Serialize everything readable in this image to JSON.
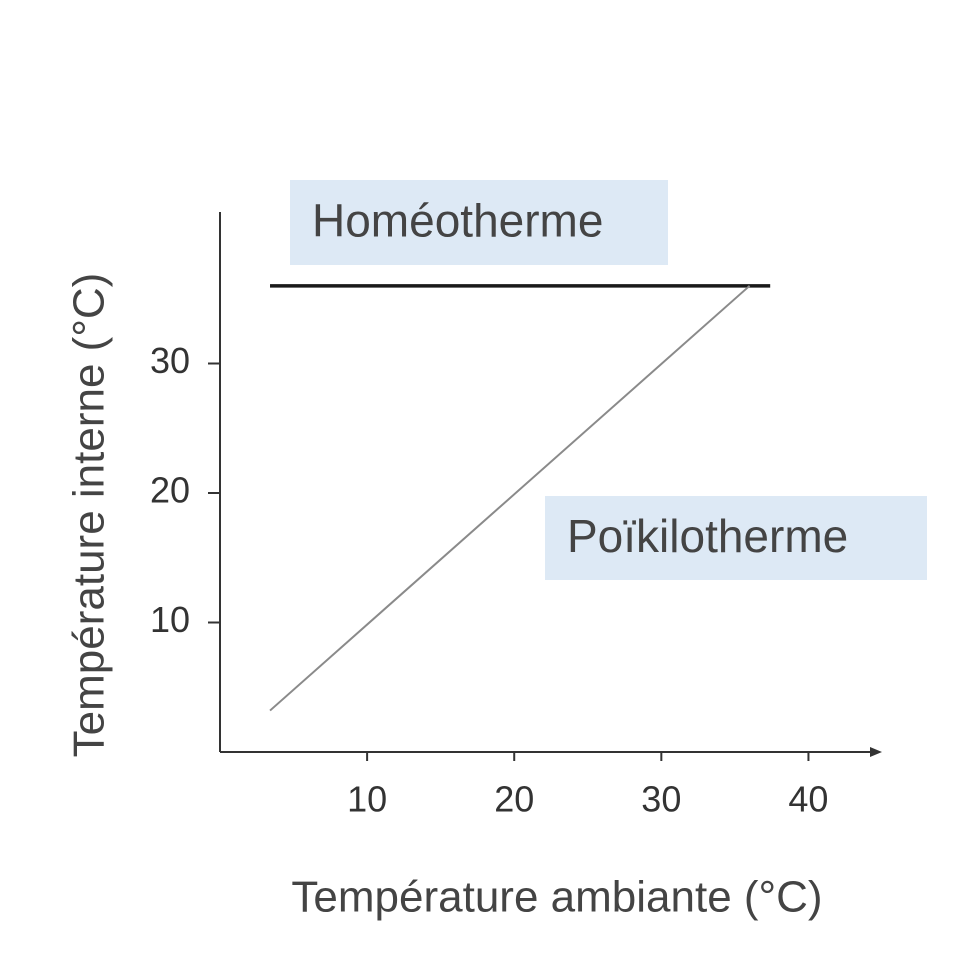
{
  "chart_data": {
    "type": "line",
    "x_label": "Température ambiante (°C)",
    "y_label": "Température interne (°C)",
    "xlim": [
      0,
      45
    ],
    "xticks": [
      10,
      20,
      30,
      40
    ],
    "ylim": [
      0,
      41.7
    ],
    "yticks": [
      10,
      20,
      30
    ],
    "series": [
      {
        "name": "Homéotherme",
        "color": "#1a1a1a",
        "x": [
          3.4,
          37.4
        ],
        "values": [
          36,
          36
        ]
      },
      {
        "name": "Poïkilotherme",
        "color": "#8a8a8a",
        "x": [
          3.4,
          36
        ],
        "values": [
          3.2,
          36
        ]
      }
    ]
  }
}
